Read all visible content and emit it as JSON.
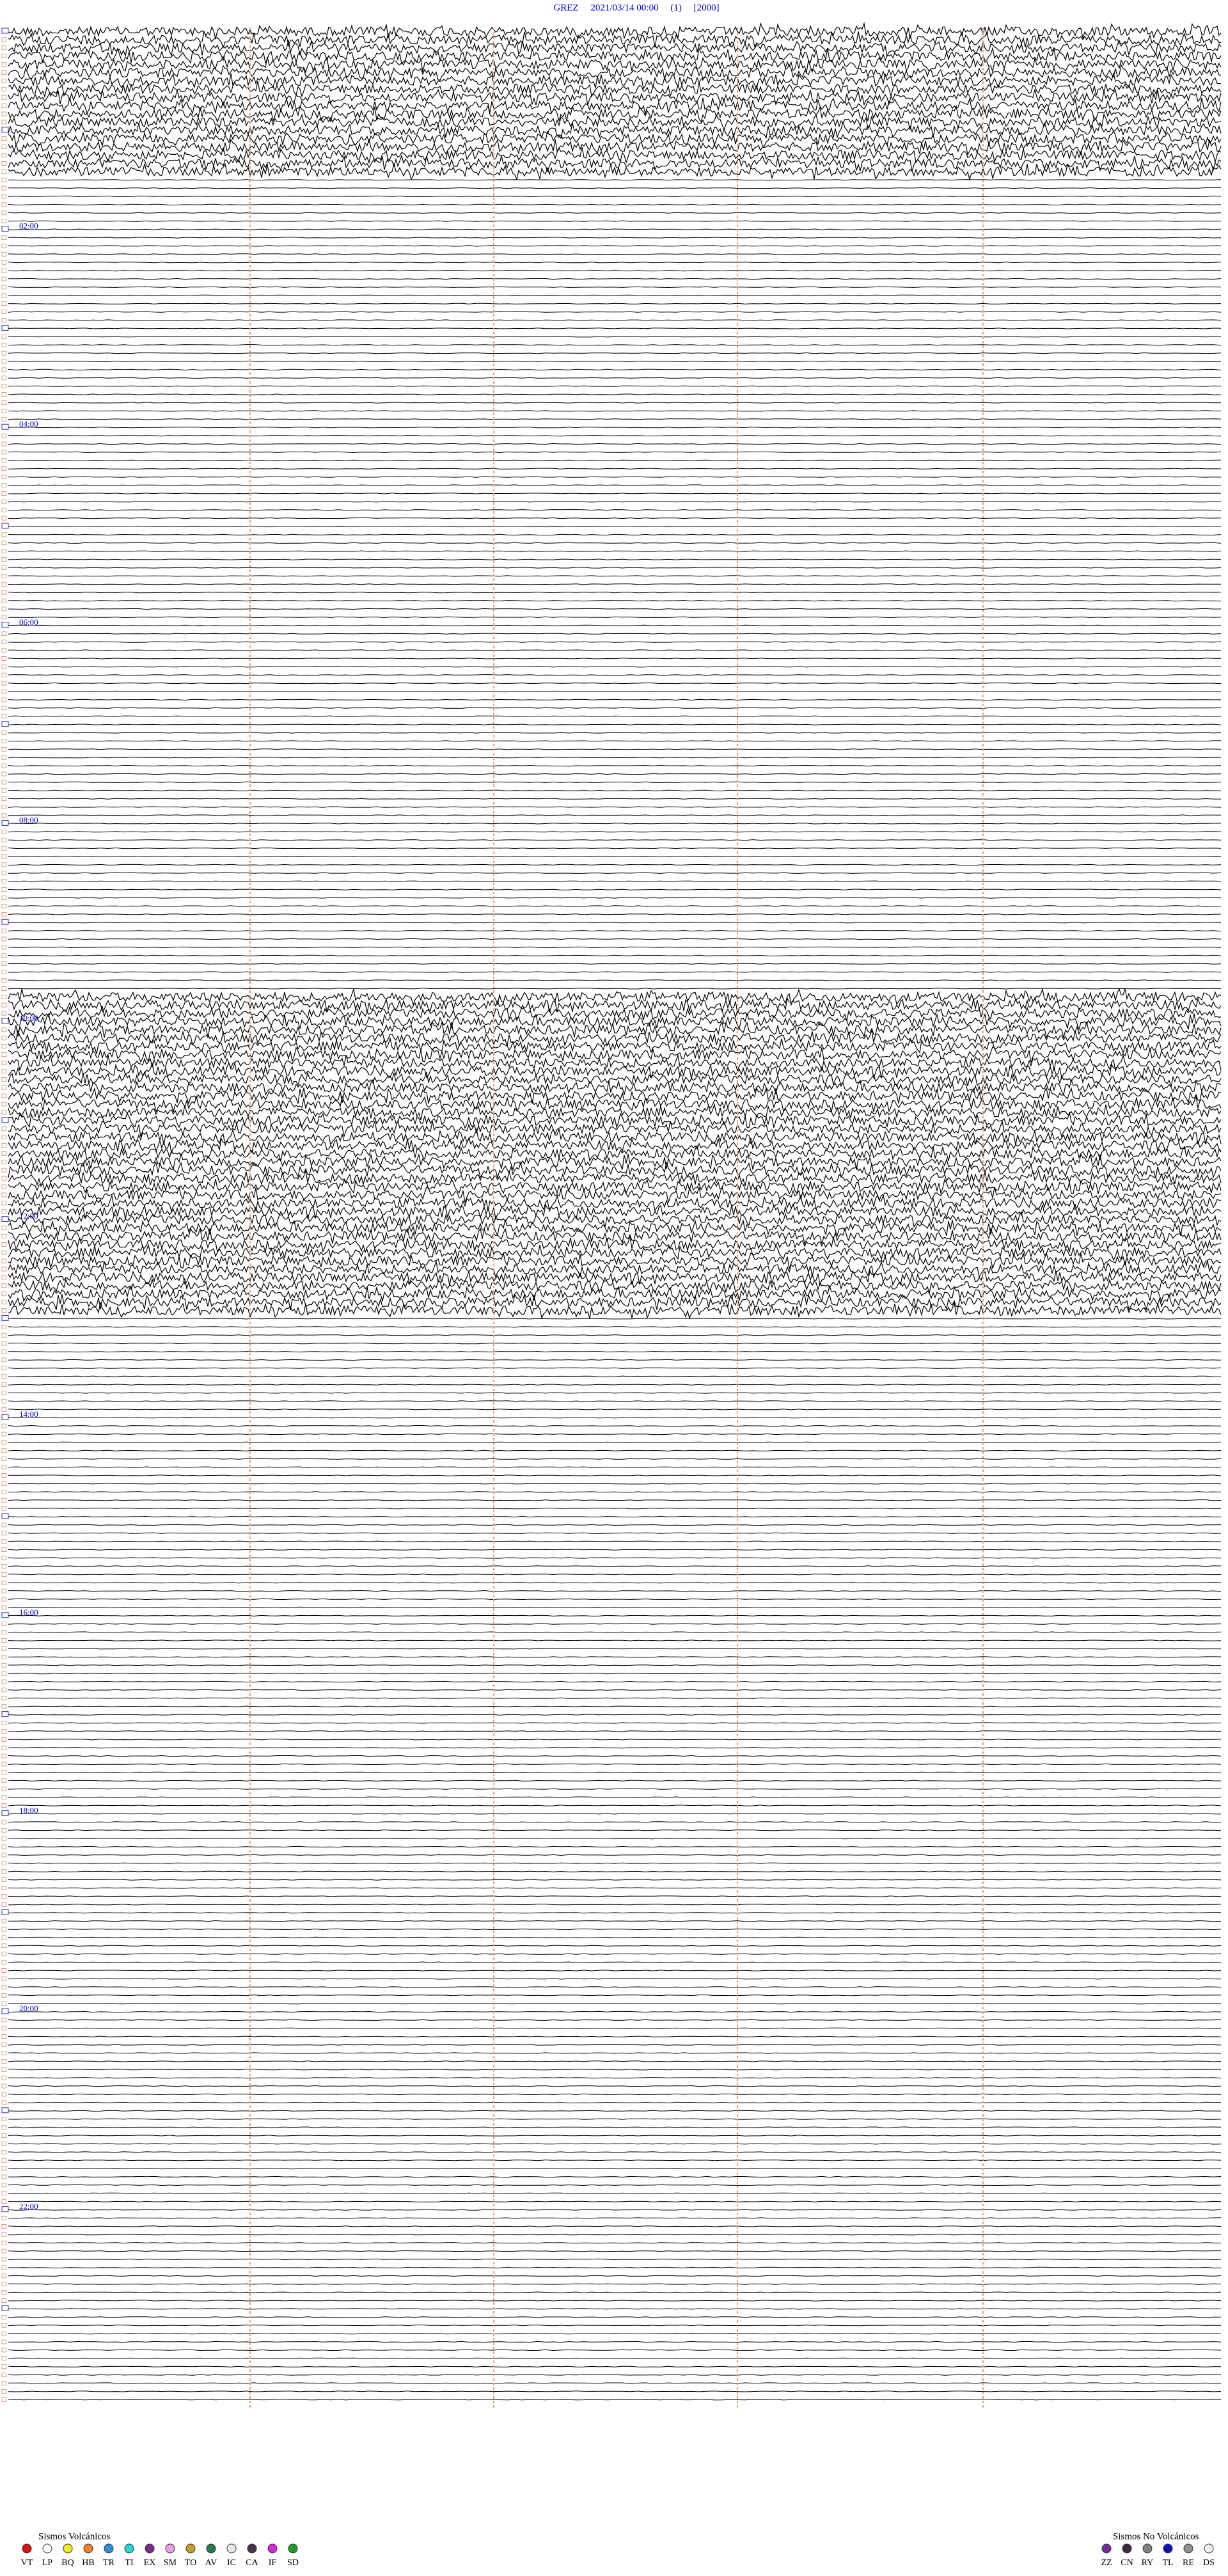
{
  "header": {
    "title": "GREZ     2021/03/14 00:00     (1)     [2000]"
  },
  "hour_labels": [
    "02:00",
    "04:00",
    "06:00",
    "08:00",
    "10:00",
    "12:00",
    "14:00",
    "16:00",
    "18:00",
    "20:00",
    "22:00"
  ],
  "legend_volcanic": {
    "title": "Sismos Volcánicos",
    "items": [
      {
        "code": "VT",
        "color": "#e01010"
      },
      {
        "code": "LP",
        "color": "#ffffff"
      },
      {
        "code": "BQ",
        "color": "#f2ec1e"
      },
      {
        "code": "HB",
        "color": "#f08020"
      },
      {
        "code": "TR",
        "color": "#2a8fe0"
      },
      {
        "code": "TI",
        "color": "#22d8d8"
      },
      {
        "code": "EX",
        "color": "#7a2a8a"
      },
      {
        "code": "SM",
        "color": "#e8a0e0"
      },
      {
        "code": "TO",
        "color": "#c8a020"
      },
      {
        "code": "AV",
        "color": "#2a7a4a"
      },
      {
        "code": "IC",
        "color": "#e8e8e8"
      },
      {
        "code": "CA",
        "color": "#4a3050"
      },
      {
        "code": "IF",
        "color": "#e020e0"
      },
      {
        "code": "SD",
        "color": "#20a020"
      }
    ]
  },
  "legend_non_volcanic": {
    "title": "Sismos No Volcánicos",
    "items": [
      {
        "code": "ZZ",
        "color": "#7a2aa0"
      },
      {
        "code": "CN",
        "color": "#3a2a40"
      },
      {
        "code": "RY",
        "color": "#808080"
      },
      {
        "code": "TL",
        "color": "#1010c0"
      },
      {
        "code": "RE",
        "color": "#909090"
      },
      {
        "code": "DS",
        "color": "#f0f0f0"
      }
    ]
  }
}
